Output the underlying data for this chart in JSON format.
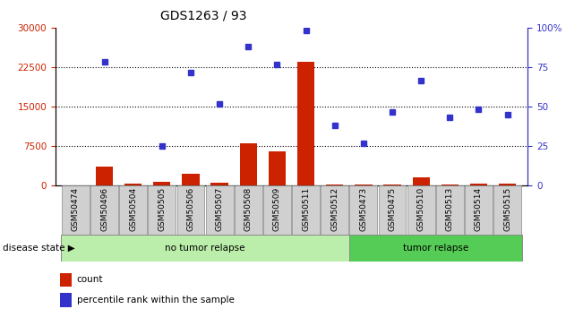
{
  "title": "GDS1263 / 93",
  "samples": [
    "GSM50474",
    "GSM50496",
    "GSM50504",
    "GSM50505",
    "GSM50506",
    "GSM50507",
    "GSM50508",
    "GSM50509",
    "GSM50511",
    "GSM50512",
    "GSM50473",
    "GSM50475",
    "GSM50510",
    "GSM50513",
    "GSM50514",
    "GSM50515"
  ],
  "counts": [
    0,
    3500,
    300,
    700,
    2200,
    500,
    8000,
    6500,
    23500,
    100,
    100,
    200,
    1500,
    200,
    400,
    350
  ],
  "percentiles": [
    null,
    23500,
    null,
    7500,
    21500,
    15500,
    26500,
    23000,
    29500,
    11500,
    8000,
    14000,
    20000,
    13000,
    14500,
    13500
  ],
  "no_tumor_count": 10,
  "tumor_count": 6,
  "ylim_left": [
    0,
    30000
  ],
  "ylim_right": [
    0,
    100
  ],
  "yticks_left": [
    0,
    7500,
    15000,
    22500,
    30000
  ],
  "yticks_right": [
    0,
    25,
    50,
    75,
    100
  ],
  "bar_color": "#cc2200",
  "dot_color": "#3333cc",
  "no_tumor_bg": "#bbeeaa",
  "tumor_bg": "#55cc55",
  "label_bg": "#d0d0d0",
  "tick_label_fontsize": 6.5,
  "title_fontsize": 10,
  "grid_lines": [
    7500,
    15000,
    22500
  ]
}
